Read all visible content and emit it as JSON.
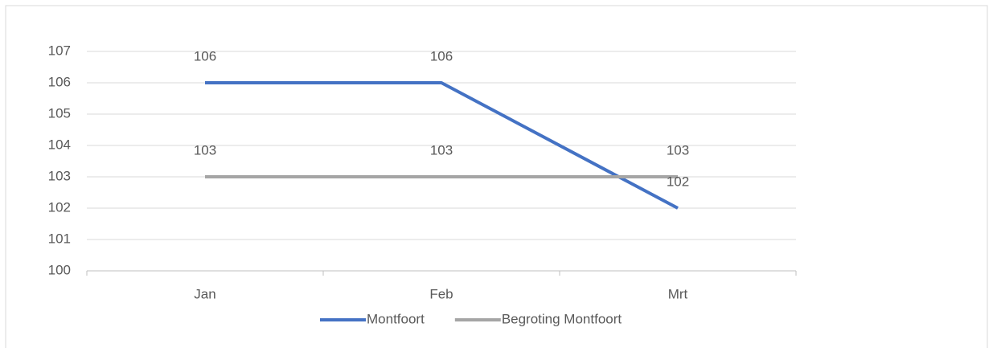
{
  "chart_data": {
    "type": "line",
    "categories": [
      "Jan",
      "Feb",
      "Mrt"
    ],
    "series": [
      {
        "name": "Montfoort",
        "color": "#4472c4",
        "values": [
          106,
          106,
          102
        ]
      },
      {
        "name": "Begroting Montfoort",
        "color": "#a5a5a5",
        "values": [
          103,
          103,
          103
        ]
      }
    ],
    "ylim": [
      100,
      107
    ],
    "yticks": [
      100,
      101,
      102,
      103,
      104,
      105,
      106,
      107
    ],
    "grid": true,
    "legend": "bottom"
  }
}
